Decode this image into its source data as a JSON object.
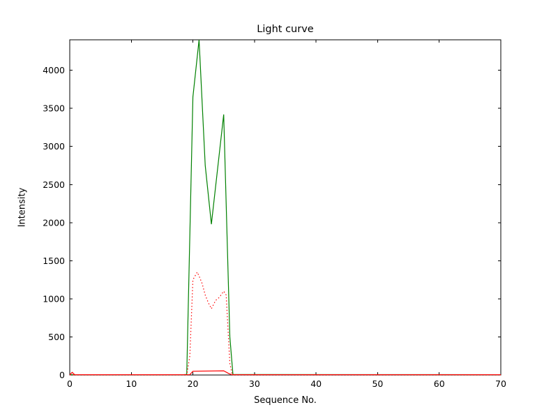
{
  "chart_data": {
    "type": "line",
    "title": "Light curve",
    "xlabel": "Sequence No.",
    "ylabel": "Intensity",
    "xlim": [
      0,
      70
    ],
    "ylim": [
      0,
      4400
    ],
    "xticks": [
      0,
      10,
      20,
      30,
      40,
      50,
      60,
      70
    ],
    "yticks": [
      0,
      500,
      1000,
      1500,
      2000,
      2500,
      3000,
      3500,
      4000
    ],
    "grid": false,
    "legend": "none",
    "background": "#ffffff",
    "axis_color": "#000000",
    "series": [
      {
        "name": "green-solid",
        "color": "#008000",
        "style": "solid",
        "points": [
          [
            0,
            4
          ],
          [
            18.5,
            4
          ],
          [
            19,
            8
          ],
          [
            20,
            3650
          ],
          [
            21,
            4400
          ],
          [
            22,
            2750
          ],
          [
            23,
            1980
          ],
          [
            24,
            2700
          ],
          [
            25,
            3420
          ],
          [
            26,
            500
          ],
          [
            26.5,
            6
          ],
          [
            70,
            4
          ]
        ]
      },
      {
        "name": "red-dotted",
        "color": "#ff0000",
        "style": "dotted",
        "points": [
          [
            0,
            2
          ],
          [
            19,
            2
          ],
          [
            19.5,
            250
          ],
          [
            20,
            1250
          ],
          [
            20.7,
            1350
          ],
          [
            21,
            1300
          ],
          [
            21.5,
            1200
          ],
          [
            22,
            1050
          ],
          [
            22.5,
            950
          ],
          [
            23,
            870
          ],
          [
            23.7,
            980
          ],
          [
            24.3,
            1020
          ],
          [
            25,
            1100
          ],
          [
            25.4,
            1050
          ],
          [
            26,
            150
          ],
          [
            26.4,
            2
          ],
          [
            70,
            2
          ]
        ]
      },
      {
        "name": "red-solid",
        "color": "#ff0000",
        "style": "solid",
        "points": [
          [
            0,
            4
          ],
          [
            0.4,
            35
          ],
          [
            0.8,
            4
          ],
          [
            19.5,
            4
          ],
          [
            20,
            50
          ],
          [
            25,
            55
          ],
          [
            25.8,
            20
          ],
          [
            26.3,
            4
          ],
          [
            70,
            4
          ]
        ]
      }
    ]
  }
}
